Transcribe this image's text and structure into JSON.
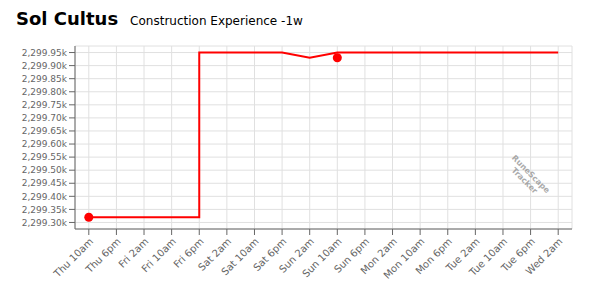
{
  "chart_data": {
    "type": "line",
    "title": "Sol Cultus",
    "subtitle": "Construction Experience -1w",
    "annotation": "RuneScape\nTracker",
    "grid": true,
    "xlim": [
      -0.5,
      17.5
    ],
    "xticks": [
      {
        "value": 0,
        "label": "Thu 10am"
      },
      {
        "value": 1,
        "label": "Thu 6pm"
      },
      {
        "value": 2,
        "label": "Fri 2am"
      },
      {
        "value": 3,
        "label": "Fri 10am"
      },
      {
        "value": 4,
        "label": "Fri 6pm"
      },
      {
        "value": 5,
        "label": "Sat 2am"
      },
      {
        "value": 6,
        "label": "Sat 10am"
      },
      {
        "value": 7,
        "label": "Sat 6pm"
      },
      {
        "value": 8,
        "label": "Sun 2am"
      },
      {
        "value": 9,
        "label": "Sun 10am"
      },
      {
        "value": 10,
        "label": "Sun 6pm"
      },
      {
        "value": 11,
        "label": "Mon 2am"
      },
      {
        "value": 12,
        "label": "Mon 10am"
      },
      {
        "value": 13,
        "label": "Mon 6pm"
      },
      {
        "value": 14,
        "label": "Tue 2am"
      },
      {
        "value": 15,
        "label": "Tue 10am"
      },
      {
        "value": 16,
        "label": "Tue 6pm"
      },
      {
        "value": 17,
        "label": "Wed 2am"
      }
    ],
    "ylim": [
      2299275,
      2299975
    ],
    "yticks": [
      {
        "value": 2299300,
        "label": "2,299.30k"
      },
      {
        "value": 2299350,
        "label": "2,299.35k"
      },
      {
        "value": 2299400,
        "label": "2,299.40k"
      },
      {
        "value": 2299450,
        "label": "2,299.45k"
      },
      {
        "value": 2299500,
        "label": "2,299.50k"
      },
      {
        "value": 2299550,
        "label": "2,299.55k"
      },
      {
        "value": 2299600,
        "label": "2,299.60k"
      },
      {
        "value": 2299650,
        "label": "2,299.65k"
      },
      {
        "value": 2299700,
        "label": "2,299.70k"
      },
      {
        "value": 2299750,
        "label": "2,299.75k"
      },
      {
        "value": 2299800,
        "label": "2,299.80k"
      },
      {
        "value": 2299850,
        "label": "2,299.85k"
      },
      {
        "value": 2299900,
        "label": "2,299.90k"
      },
      {
        "value": 2299950,
        "label": "2,299.95k"
      }
    ],
    "series": [
      {
        "type": "line",
        "color": "#ff0000",
        "x": [
          0,
          1,
          2,
          3,
          4,
          4,
          5,
          6,
          7,
          8,
          9,
          10,
          11,
          12,
          13,
          14,
          15,
          17
        ],
        "values": [
          2299320,
          2299320,
          2299320,
          2299320,
          2299320,
          2299950,
          2299950,
          2299950,
          2299950,
          2299930,
          2299950,
          2299950,
          2299950,
          2299950,
          2299950,
          2299950,
          2299950,
          2299950
        ]
      },
      {
        "type": "scatter",
        "color": "#ff0000",
        "x": [
          9,
          0
        ],
        "values": [
          2299930,
          2299320
        ]
      }
    ]
  }
}
